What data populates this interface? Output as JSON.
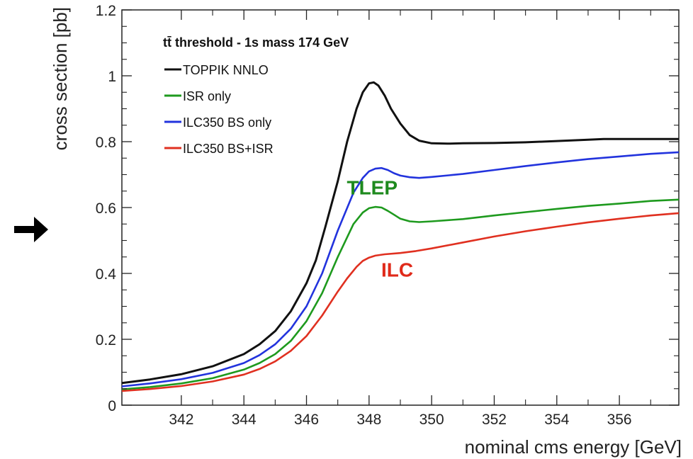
{
  "chart_data": {
    "type": "line",
    "title": "",
    "legend_title": "tt̄ threshold - 1s mass 174 GeV",
    "xlabel": "nominal cms energy [GeV]",
    "ylabel": "cross section [pb]",
    "xlim": [
      340.1,
      357.9
    ],
    "ylim": [
      0,
      1.2
    ],
    "x_ticks": [
      342,
      344,
      346,
      348,
      350,
      352,
      354,
      356
    ],
    "y_ticks": [
      0,
      0.2,
      0.4,
      0.6,
      0.8,
      1,
      1.2
    ],
    "x_tick_labels": [
      "342",
      "344",
      "346",
      "348",
      "350",
      "352",
      "354",
      "356"
    ],
    "y_tick_labels": [
      "0",
      "0.2",
      "0.4",
      "0.6",
      "0.8",
      "1",
      "1.2"
    ],
    "legend_position": "top-left",
    "grid": false,
    "series": [
      {
        "name": "TOPPIK NNLO",
        "color": "#111111",
        "x": [
          340.1,
          341.0,
          342.0,
          343.0,
          344.0,
          344.5,
          345.0,
          345.5,
          346.0,
          346.3,
          346.6,
          347.0,
          347.3,
          347.6,
          347.8,
          348.0,
          348.15,
          348.3,
          348.5,
          348.7,
          349.0,
          349.3,
          349.6,
          350.0,
          350.5,
          351.0,
          352.0,
          353.0,
          354.0,
          355.0,
          355.5,
          356.0,
          357.0,
          357.9
        ],
        "y": [
          0.067,
          0.078,
          0.094,
          0.118,
          0.155,
          0.185,
          0.225,
          0.285,
          0.37,
          0.44,
          0.54,
          0.68,
          0.8,
          0.9,
          0.95,
          0.977,
          0.98,
          0.97,
          0.94,
          0.9,
          0.855,
          0.82,
          0.803,
          0.795,
          0.794,
          0.795,
          0.796,
          0.798,
          0.802,
          0.806,
          0.808,
          0.808,
          0.808,
          0.808
        ]
      },
      {
        "name": "ISR only",
        "color": "#1e9a1e",
        "x": [
          340.1,
          341.0,
          342.0,
          343.0,
          344.0,
          344.5,
          345.0,
          345.5,
          346.0,
          346.5,
          347.0,
          347.5,
          347.8,
          348.0,
          348.2,
          348.4,
          348.6,
          348.8,
          349.0,
          349.3,
          349.6,
          350.0,
          351.0,
          352.0,
          353.0,
          354.0,
          355.0,
          356.0,
          357.0,
          357.9
        ],
        "y": [
          0.048,
          0.055,
          0.066,
          0.082,
          0.108,
          0.128,
          0.155,
          0.195,
          0.255,
          0.34,
          0.45,
          0.55,
          0.585,
          0.598,
          0.602,
          0.6,
          0.59,
          0.578,
          0.566,
          0.558,
          0.556,
          0.558,
          0.565,
          0.576,
          0.586,
          0.596,
          0.605,
          0.612,
          0.62,
          0.624
        ]
      },
      {
        "name": "ILC350 BS only",
        "color": "#2233dd",
        "x": [
          340.1,
          341.0,
          342.0,
          343.0,
          344.0,
          344.5,
          345.0,
          345.5,
          346.0,
          346.5,
          347.0,
          347.5,
          347.8,
          348.0,
          348.2,
          348.4,
          348.6,
          348.8,
          349.0,
          349.3,
          349.6,
          350.0,
          351.0,
          352.0,
          353.0,
          354.0,
          355.0,
          356.0,
          357.0,
          357.9
        ],
        "y": [
          0.057,
          0.066,
          0.079,
          0.098,
          0.128,
          0.152,
          0.185,
          0.232,
          0.3,
          0.4,
          0.53,
          0.645,
          0.69,
          0.71,
          0.718,
          0.72,
          0.714,
          0.704,
          0.697,
          0.692,
          0.69,
          0.693,
          0.702,
          0.714,
          0.726,
          0.737,
          0.747,
          0.755,
          0.763,
          0.768
        ]
      },
      {
        "name": "ILC350 BS+ISR",
        "color": "#e03020",
        "x": [
          340.1,
          341.0,
          342.0,
          343.0,
          344.0,
          344.5,
          345.0,
          345.5,
          346.0,
          346.5,
          347.0,
          347.3,
          347.6,
          347.8,
          348.0,
          348.2,
          348.5,
          349.0,
          349.5,
          350.0,
          351.0,
          352.0,
          353.0,
          354.0,
          355.0,
          356.0,
          357.0,
          357.9
        ],
        "y": [
          0.043,
          0.049,
          0.058,
          0.072,
          0.093,
          0.11,
          0.133,
          0.165,
          0.21,
          0.272,
          0.345,
          0.385,
          0.42,
          0.438,
          0.448,
          0.454,
          0.458,
          0.462,
          0.468,
          0.476,
          0.494,
          0.512,
          0.528,
          0.542,
          0.555,
          0.566,
          0.576,
          0.583
        ]
      }
    ],
    "annotations": [
      {
        "text": "TLEP",
        "x": 348.1,
        "y": 0.64,
        "color": "#1e8a1e"
      },
      {
        "text": "ILC",
        "x": 348.9,
        "y": 0.39,
        "color": "#e02a1a"
      }
    ]
  },
  "arrow_icon": "arrow-right-icon"
}
